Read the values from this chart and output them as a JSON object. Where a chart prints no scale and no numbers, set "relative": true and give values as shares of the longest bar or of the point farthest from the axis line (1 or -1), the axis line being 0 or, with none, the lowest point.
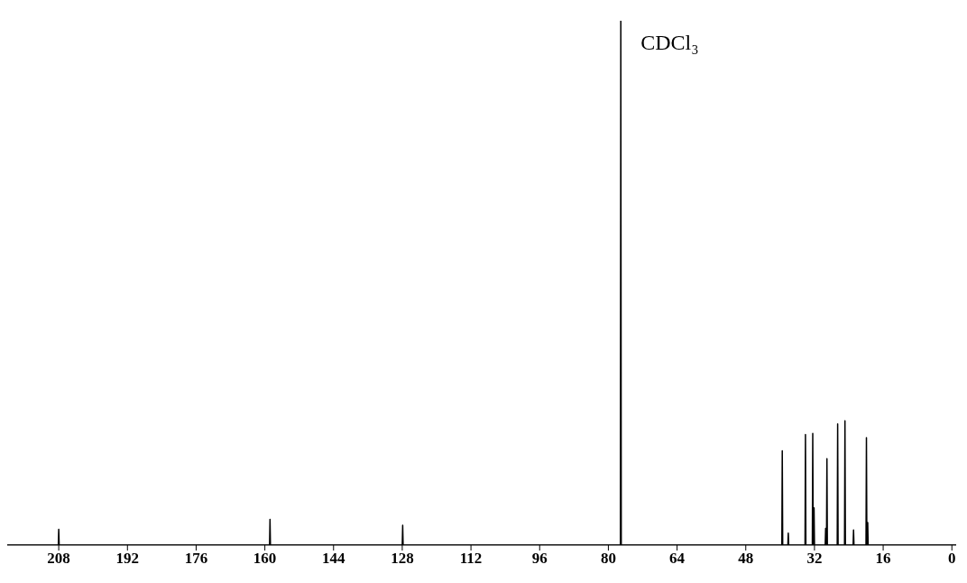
{
  "chart_data": {
    "type": "line",
    "relative": true,
    "xlim": [
      220,
      -1
    ],
    "xticks": [
      208,
      192,
      176,
      160,
      144,
      128,
      112,
      96,
      80,
      64,
      48,
      32,
      16,
      0
    ],
    "grid": false,
    "marker": "none",
    "line_style": "solid",
    "annotations": [
      {
        "text": "CDCl₃",
        "x": 77.1,
        "y": 1
      }
    ],
    "series": [
      {
        "color": "#000000",
        "x": [
          220,
          208.1,
          208.0,
          207.9,
          158.9,
          158.8,
          158.7,
          128.0,
          127.9,
          127.8,
          77.2,
          77.1,
          77.0,
          39.6,
          39.5,
          39.4,
          38.2,
          38.1,
          38.0,
          34.2,
          34.1,
          34.0,
          32.5,
          32.4,
          32.3,
          32.2,
          32.1,
          32.0,
          29.5,
          29.4,
          29.3,
          29.2,
          29.1,
          29.0,
          26.7,
          26.6,
          26.5,
          25.0,
          24.9,
          24.8,
          23.0,
          22.9,
          22.8,
          20.0,
          19.9,
          19.8,
          19.7,
          19.6,
          19.5,
          -1
        ],
        "values": [
          0,
          0,
          0.03,
          0,
          0,
          0.049,
          0,
          0,
          0.038,
          0,
          0,
          1,
          0,
          0,
          0.18,
          0,
          0,
          0.023,
          0,
          0,
          0.211,
          0,
          0,
          0.213,
          0,
          0,
          0.071,
          0,
          0,
          0.032,
          0,
          0,
          0.165,
          0,
          0,
          0.231,
          0,
          0,
          0.237,
          0,
          0,
          0.029,
          0,
          0,
          0.205,
          0,
          0,
          0.043,
          0,
          0
        ]
      }
    ]
  }
}
